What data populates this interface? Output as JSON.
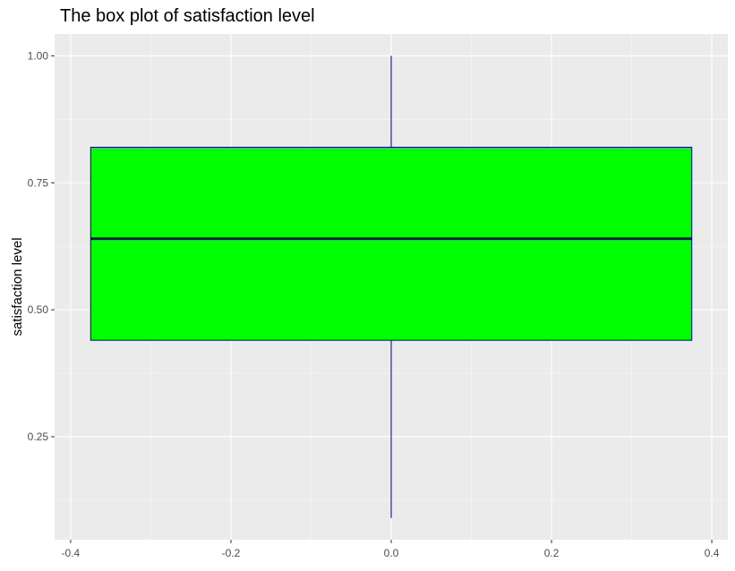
{
  "chart_data": {
    "type": "box",
    "title": "The box plot of satisfaction level",
    "xlabel": "",
    "ylabel": "satisfaction level",
    "x_range": [
      -0.42,
      0.42
    ],
    "y_range": [
      0.09,
      1.0
    ],
    "x_ticks": [
      -0.4,
      -0.2,
      0.0,
      0.2,
      0.4
    ],
    "x_tick_labels": [
      "-0.4",
      "-0.2",
      "0.0",
      "0.2",
      "0.4"
    ],
    "y_ticks": [
      0.25,
      0.5,
      0.75,
      1.0
    ],
    "y_tick_labels": [
      "0.25",
      "0.50",
      "0.75",
      "1.00"
    ],
    "grid": true,
    "legend": "none",
    "box": {
      "x_center": 0.0,
      "x_min": -0.375,
      "x_max": 0.375,
      "whisker_low": 0.09,
      "q1": 0.44,
      "median": 0.64,
      "q3": 0.82,
      "whisker_high": 1.0
    },
    "colors": {
      "box_fill": "#00ff00",
      "box_outline": "#000080",
      "panel_background": "#ebebeb",
      "grid_major": "#ffffff"
    }
  }
}
